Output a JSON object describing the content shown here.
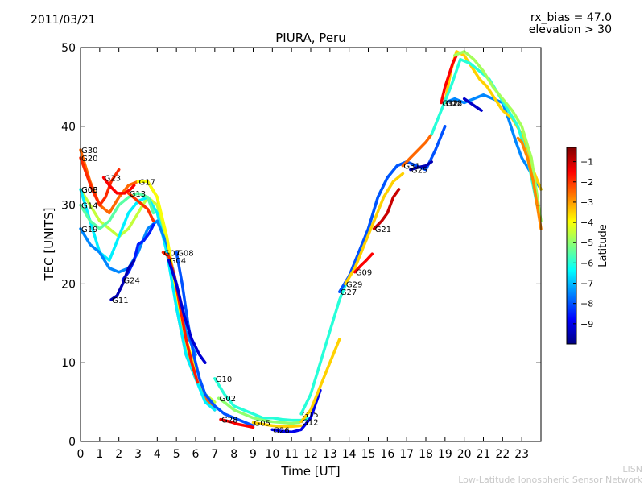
{
  "header": {
    "date": "2011/03/21",
    "rx_bias": "rx_bias = 47.0",
    "elevation": "elevation > 30"
  },
  "footer": {
    "line1": "LISN",
    "line2": "Low-Latitude Ionospheric Sensor Network"
  },
  "chart_data": {
    "type": "scatter",
    "title": "PIURA, Peru",
    "xlabel": "Time [UT]",
    "ylabel": "TEC [UNITS]",
    "xlim": [
      0,
      24
    ],
    "ylim": [
      0,
      50
    ],
    "xticks": [
      0,
      1,
      2,
      3,
      4,
      5,
      6,
      7,
      8,
      9,
      10,
      11,
      12,
      13,
      14,
      15,
      16,
      17,
      18,
      19,
      20,
      21,
      22,
      23
    ],
    "yticks": [
      0,
      10,
      20,
      30,
      40,
      50
    ],
    "grid": false,
    "colorbar": {
      "label": "Latitude",
      "min": -10,
      "max": -0.3,
      "ticks": [
        -9,
        -8,
        -7,
        -6,
        -5,
        -4,
        -3,
        -2,
        -1
      ],
      "colormap": [
        "#00007f",
        "#0000ff",
        "#007fff",
        "#00ffff",
        "#7fff7f",
        "#ffff00",
        "#ff7f00",
        "#ff0000",
        "#7f0000"
      ]
    },
    "series": [
      {
        "name": "G30",
        "lat": -2.5,
        "x": [
          0.0,
          0.5,
          1.0,
          1.5,
          2.0,
          2.5,
          3.0,
          3.5,
          4.0,
          4.5,
          5.0,
          5.5,
          6.0,
          6.5,
          7.0
        ],
        "y": [
          37,
          33,
          30,
          29,
          31,
          32.5,
          33,
          33,
          31,
          25,
          17,
          11,
          8,
          5.5,
          4
        ]
      },
      {
        "name": "G20",
        "lat": -1.9,
        "x": [
          0.0,
          0.3,
          0.6,
          1.0,
          1.3,
          1.6,
          2.0
        ],
        "y": [
          36,
          34,
          32,
          30,
          31,
          33,
          34.5
        ]
      },
      {
        "name": "G23",
        "lat": -1.5,
        "x": [
          1.2,
          1.5,
          1.9,
          2.3,
          2.6,
          2.8
        ],
        "y": [
          33.5,
          32.5,
          31.5,
          31.5,
          32,
          32.5
        ]
      },
      {
        "name": "G06",
        "lat": -4.5,
        "x": [
          0.0,
          0.5,
          1.0,
          1.5,
          2.0,
          2.5,
          3.0,
          3.5,
          4.0,
          4.5,
          5.0,
          5.5,
          6.0,
          6.5,
          7.0
        ],
        "y": [
          32,
          30,
          28,
          27,
          26,
          27,
          29,
          31,
          30,
          25,
          18,
          12,
          8,
          6,
          5
        ]
      },
      {
        "name": "G03",
        "lat": -6.5,
        "x": [
          0.0,
          0.5,
          1.0,
          1.5,
          2.0,
          2.5,
          3.0,
          3.5,
          4.0,
          4.5,
          5.0,
          5.5,
          6.0,
          6.5,
          7.0
        ],
        "y": [
          32,
          28,
          24,
          23,
          26,
          29,
          30.5,
          31,
          29,
          24,
          17,
          11,
          8,
          5,
          4
        ]
      },
      {
        "name": "G14",
        "lat": -5.5,
        "x": [
          0.0,
          0.5,
          1.0,
          1.5,
          2.0,
          2.5,
          3.0,
          3.5,
          3.8
        ],
        "y": [
          30,
          28,
          27,
          28,
          30,
          31,
          31.5,
          31,
          29
        ]
      },
      {
        "name": "G19",
        "lat": -7.5,
        "x": [
          0.0,
          0.5,
          1.0,
          1.5,
          2.0,
          2.5,
          3.0,
          3.5,
          4.0,
          4.5,
          5.0,
          5.5,
          6.0
        ],
        "y": [
          27,
          25,
          24,
          22,
          21.5,
          22,
          24,
          27,
          28,
          25,
          20,
          14,
          11
        ]
      },
      {
        "name": "G13",
        "lat": -2.0,
        "x": [
          2.5,
          3.0,
          3.5,
          3.8
        ],
        "y": [
          31.5,
          30.5,
          29.5,
          28
        ]
      },
      {
        "name": "G17",
        "lat": -4.0,
        "x": [
          3.0,
          3.5,
          4.0,
          4.5,
          5.0,
          5.5,
          6.0
        ],
        "y": [
          33,
          33,
          31,
          26,
          19,
          13,
          9
        ]
      },
      {
        "name": "G24",
        "lat": -8.5,
        "x": [
          2.2,
          2.5,
          2.8,
          3.0,
          3.3,
          3.6,
          3.8
        ],
        "y": [
          20.5,
          21.5,
          23,
          25,
          25.5,
          26.5,
          27.5
        ]
      },
      {
        "name": "G11",
        "lat": -9.5,
        "x": [
          1.6,
          1.9,
          2.2,
          2.5,
          2.8
        ],
        "y": [
          18,
          18.5,
          20,
          22,
          23
        ]
      },
      {
        "name": "G07",
        "lat": -1.8,
        "x": [
          4.3,
          4.6,
          4.9,
          5.2,
          5.5,
          5.8,
          6.1
        ],
        "y": [
          24,
          23.5,
          21,
          17,
          13,
          10,
          7.5
        ]
      },
      {
        "name": "G08",
        "lat": -8.0,
        "x": [
          5.0,
          5.3,
          5.6,
          5.9,
          6.2,
          6.5,
          7.0,
          7.5,
          8.0,
          8.5,
          9.0
        ],
        "y": [
          24,
          20,
          15,
          11,
          8,
          6,
          4.5,
          3.5,
          3,
          2.5,
          2
        ]
      },
      {
        "name": "G04",
        "lat": -9.2,
        "x": [
          4.6,
          5.0,
          5.4,
          5.8,
          6.2,
          6.5
        ],
        "y": [
          23,
          20,
          16,
          13,
          11,
          10
        ]
      },
      {
        "name": "G10",
        "lat": -6.0,
        "x": [
          7.0,
          7.5,
          8.0,
          8.5,
          9.0,
          9.5,
          10.0,
          10.5,
          11.0,
          11.5,
          12.0
        ],
        "y": [
          8,
          6,
          4.5,
          4,
          3.5,
          3,
          3,
          2.8,
          2.7,
          2.7,
          3
        ]
      },
      {
        "name": "G02",
        "lat": -5.0,
        "x": [
          7.2,
          7.6,
          8.0,
          8.5,
          9.0,
          9.5,
          10.0,
          10.5,
          11.0,
          11.4
        ],
        "y": [
          5.5,
          4.8,
          4,
          3.5,
          3,
          2.7,
          2.5,
          2.4,
          2.3,
          2.4
        ]
      },
      {
        "name": "G28",
        "lat": -1.5,
        "x": [
          7.3,
          7.8,
          8.2,
          8.6,
          9.0
        ],
        "y": [
          2.8,
          2.5,
          2.2,
          2.0,
          1.8
        ]
      },
      {
        "name": "G05",
        "lat": -3.5,
        "x": [
          9.0,
          9.5,
          10.0,
          10.5,
          11.0,
          11.5
        ],
        "y": [
          2.4,
          2.2,
          2.0,
          1.9,
          1.9,
          2.0
        ]
      },
      {
        "name": "G26",
        "lat": -9.0,
        "x": [
          10.0,
          10.5,
          11.0,
          11.5,
          12.0,
          12.5
        ],
        "y": [
          1.5,
          1.3,
          1.2,
          1.5,
          3.0,
          6.5
        ]
      },
      {
        "name": "G12",
        "lat": -3.5,
        "x": [
          11.5,
          12.0,
          12.5,
          13.0,
          13.5
        ],
        "y": [
          2.5,
          4.0,
          7.0,
          10.0,
          13.0
        ]
      },
      {
        "name": "G15",
        "lat": -6.0,
        "x": [
          11.5,
          12.0,
          12.5,
          13.0,
          13.5,
          14.0,
          14.5,
          15.0,
          15.5,
          16.0,
          16.5,
          17.0
        ],
        "y": [
          3.5,
          6,
          10,
          14,
          18,
          21,
          23.5,
          27,
          31,
          33.5,
          35,
          35.5
        ]
      },
      {
        "name": "G27",
        "lat": -8.0,
        "x": [
          13.5,
          14.0,
          14.5,
          15.0,
          15.5,
          16.0,
          16.5,
          17.0,
          17.5,
          18.0,
          18.5,
          19.0
        ],
        "y": [
          19,
          21,
          24,
          27,
          31,
          33.5,
          35,
          35.5,
          35,
          34.5,
          37,
          40
        ]
      },
      {
        "name": "G29",
        "lat": -3.5,
        "x": [
          13.8,
          14.3,
          14.8,
          15.3,
          15.8,
          16.3,
          16.8
        ],
        "y": [
          20,
          22,
          25,
          28,
          31,
          33,
          34
        ]
      },
      {
        "name": "G09",
        "lat": -1.5,
        "x": [
          14.3,
          14.6,
          14.9,
          15.2
        ],
        "y": [
          21.5,
          22.3,
          23,
          23.8
        ]
      },
      {
        "name": "G21",
        "lat": -1.0,
        "x": [
          15.3,
          15.7,
          16.0,
          16.3,
          16.6
        ],
        "y": [
          27,
          28,
          29,
          31,
          32
        ]
      },
      {
        "name": "G25",
        "lat": -9.5,
        "x": [
          17.2,
          17.6,
          18.0,
          18.3
        ],
        "y": [
          34.5,
          34.8,
          35.0,
          35.5
        ]
      },
      {
        "name": "G31",
        "lat": -2.5,
        "x": [
          16.8,
          17.2,
          17.6,
          18.0,
          18.3
        ],
        "y": [
          35,
          36,
          37,
          38,
          39
        ]
      },
      {
        "name": "G18",
        "lat": -7.5,
        "x": [
          19.0,
          19.5,
          20.0,
          20.5,
          21.0,
          21.5,
          22.0,
          22.3,
          22.7,
          23.0,
          23.5,
          24.0
        ],
        "y": [
          43,
          43.5,
          43,
          43.5,
          44,
          43.5,
          43,
          41,
          38,
          36,
          34,
          32
        ]
      },
      {
        "name": "G22",
        "lat": -3.5,
        "x": [
          19.0,
          19.3,
          19.6,
          20.0,
          20.4,
          20.8,
          21.2,
          21.6,
          22.0,
          22.5,
          23.0,
          23.5,
          24.0
        ],
        "y": [
          43,
          47,
          49.5,
          49,
          47.5,
          46,
          45,
          43.5,
          42,
          41,
          39,
          35,
          32
        ]
      },
      {
        "name": "G32",
        "lat": -1.5,
        "x": [
          18.8,
          19.0,
          19.2,
          19.4,
          19.6
        ],
        "y": [
          43,
          45,
          46.5,
          48,
          49
        ]
      },
      {
        "name": "",
        "lat": -6.0,
        "x": [
          18.3,
          18.8,
          19.3,
          19.8,
          20.3,
          20.8,
          21.3,
          21.8,
          22.3,
          22.8,
          23.3,
          23.8
        ],
        "y": [
          39,
          42,
          45,
          48.5,
          48,
          47,
          46,
          44,
          42,
          40,
          36,
          30
        ]
      },
      {
        "name": "",
        "lat": -4.8,
        "x": [
          19.5,
          20.0,
          20.5,
          21.0,
          21.5,
          22.0,
          22.5,
          23.0,
          23.5,
          24.0
        ],
        "y": [
          49,
          49.5,
          48.5,
          47,
          45,
          43.5,
          42,
          40,
          36,
          28
        ]
      },
      {
        "name": "",
        "lat": -9.3,
        "x": [
          20.0,
          20.3,
          20.6,
          20.9
        ],
        "y": [
          43.5,
          43,
          42.5,
          42
        ]
      },
      {
        "name": "",
        "lat": -2.8,
        "x": [
          22.8,
          23.0,
          23.3,
          23.6,
          24.0
        ],
        "y": [
          38.5,
          38,
          36,
          33,
          27
        ]
      }
    ]
  }
}
